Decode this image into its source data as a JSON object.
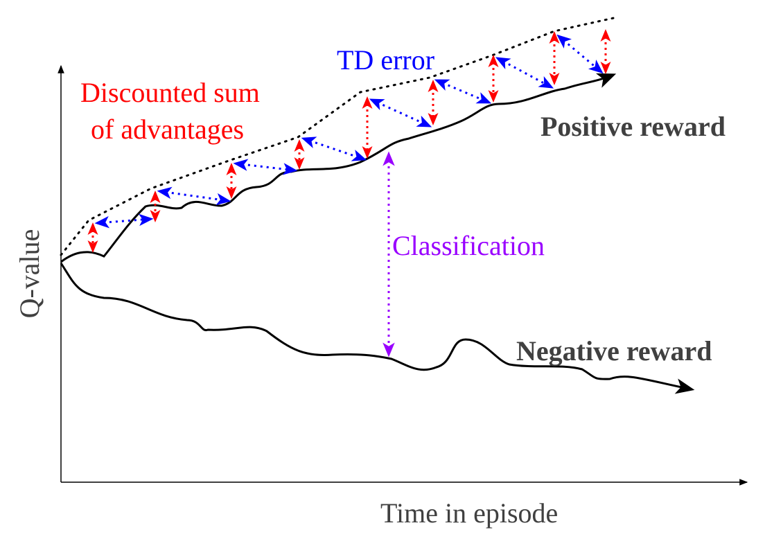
{
  "labels": {
    "y_axis": "Q-value",
    "x_axis": "Time in episode",
    "td_error": "TD error",
    "discounted_line1": "Discounted sum",
    "discounted_line2": "of advantages",
    "positive_reward": "Positive reward",
    "negative_reward": "Negative reward",
    "classification": "Classification"
  },
  "colors": {
    "axis": "#000000",
    "curve": "#000000",
    "upper_bound": "#000000",
    "td_error": "#0000ff",
    "advantages": "#ff0000",
    "classification": "#9900ff",
    "text_dark": "#404040"
  }
}
